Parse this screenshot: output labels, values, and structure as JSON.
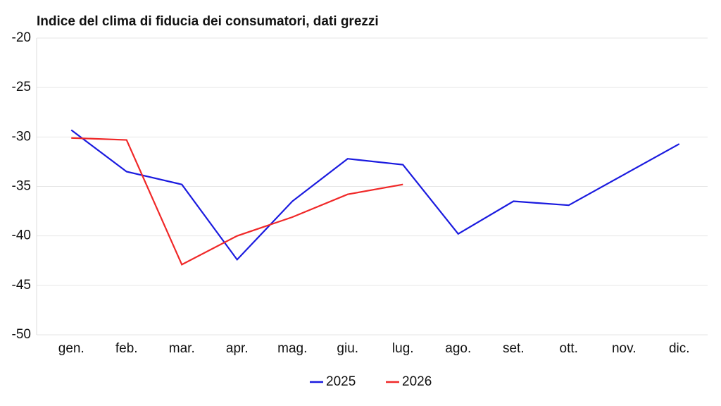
{
  "chart_data": {
    "type": "line",
    "title": "Indice del clima di fiducia dei consumatori, dati grezzi",
    "categories": [
      "gen.",
      "feb.",
      "mar.",
      "apr.",
      "mag.",
      "giu.",
      "lug.",
      "ago.",
      "set.",
      "ott.",
      "nov.",
      "dic."
    ],
    "series": [
      {
        "name": "2025",
        "color": "#1a1adf",
        "values": [
          -29.3,
          -33.5,
          -34.8,
          -42.4,
          -36.5,
          -32.2,
          -32.8,
          -39.8,
          -36.5,
          -36.9,
          -33.8,
          -30.7
        ]
      },
      {
        "name": "2026",
        "color": "#f02828",
        "values": [
          -30.1,
          -30.3,
          -42.9,
          -40.0,
          -38.1,
          -35.8,
          -34.8,
          null,
          null,
          null,
          null,
          null
        ]
      }
    ],
    "ylim": [
      -50,
      -20
    ],
    "yticks": [
      -50,
      -45,
      -40,
      -35,
      -30,
      -25,
      -20
    ],
    "grid": true,
    "legend": "bottom"
  }
}
